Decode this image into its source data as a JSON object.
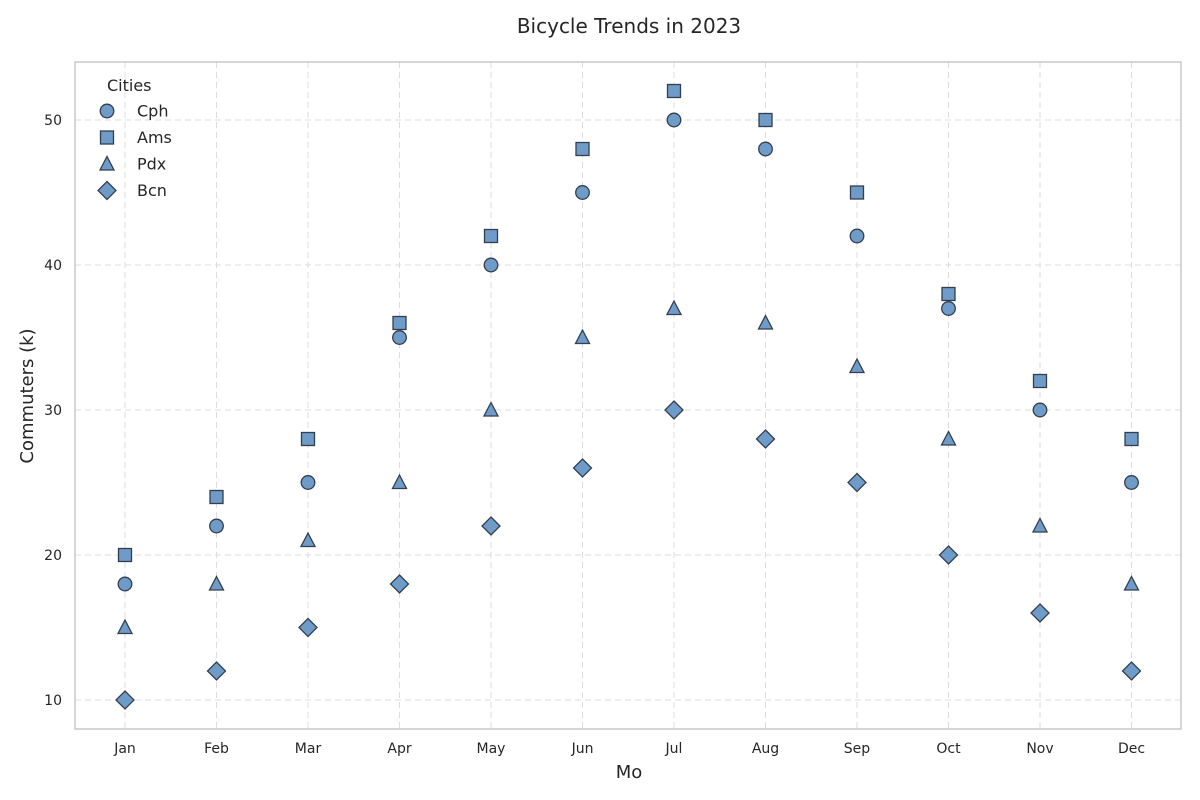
{
  "chart_data": {
    "type": "scatter",
    "title": "Bicycle Trends in 2023",
    "xlabel": "Mo",
    "ylabel": "Commuters (k)",
    "categories": [
      "Jan",
      "Feb",
      "Mar",
      "Apr",
      "May",
      "Jun",
      "Jul",
      "Aug",
      "Sep",
      "Oct",
      "Nov",
      "Dec"
    ],
    "ylim": [
      8,
      54
    ],
    "yticks": [
      10,
      20,
      30,
      40,
      50
    ],
    "grid": true,
    "legend": {
      "title": "Cities",
      "placement": "top-left"
    },
    "marker_color": "#6f9bc8",
    "marker_edge_color": "#333f4f",
    "series": [
      {
        "name": "Cph",
        "marker": "circle",
        "values": [
          18,
          22,
          25,
          35,
          40,
          45,
          50,
          48,
          42,
          37,
          30,
          25
        ]
      },
      {
        "name": "Ams",
        "marker": "square",
        "values": [
          20,
          24,
          28,
          36,
          42,
          48,
          52,
          50,
          45,
          38,
          32,
          28
        ]
      },
      {
        "name": "Pdx",
        "marker": "triangle",
        "values": [
          15,
          18,
          21,
          25,
          30,
          35,
          37,
          36,
          33,
          28,
          22,
          18
        ]
      },
      {
        "name": "Bcn",
        "marker": "diamond",
        "values": [
          10,
          12,
          15,
          18,
          22,
          26,
          30,
          28,
          25,
          20,
          16,
          12
        ]
      }
    ]
  }
}
